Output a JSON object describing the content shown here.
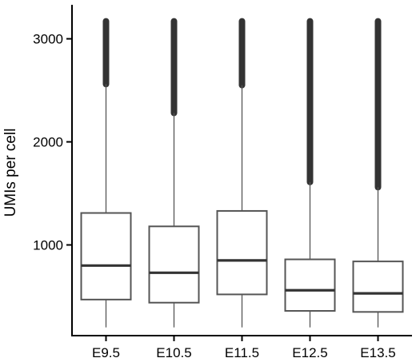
{
  "chart_data": {
    "type": "boxplot",
    "title": "",
    "xlabel": "",
    "ylabel": "UMIs per cell",
    "ylim": [
      120,
      3330
    ],
    "yticks": [
      1000,
      2000,
      3000
    ],
    "grid": false,
    "legend": "none",
    "categories": [
      "E9.5",
      "E10.5",
      "E11.5",
      "E12.5",
      "E13.5"
    ],
    "boxes": [
      {
        "category": "E9.5",
        "whisker_low": 200,
        "q1": 470,
        "median": 800,
        "q3": 1310,
        "whisker_high": 2560,
        "outliers_from": 2560,
        "outliers_to": 3170
      },
      {
        "category": "E10.5",
        "whisker_low": 200,
        "q1": 440,
        "median": 730,
        "q3": 1180,
        "whisker_high": 2280,
        "outliers_from": 2280,
        "outliers_to": 3170
      },
      {
        "category": "E11.5",
        "whisker_low": 200,
        "q1": 520,
        "median": 850,
        "q3": 1330,
        "whisker_high": 2550,
        "outliers_from": 2550,
        "outliers_to": 3170
      },
      {
        "category": "E12.5",
        "whisker_low": 200,
        "q1": 360,
        "median": 560,
        "q3": 860,
        "whisker_high": 1610,
        "outliers_from": 1610,
        "outliers_to": 3170
      },
      {
        "category": "E13.5",
        "whisker_low": 200,
        "q1": 350,
        "median": 530,
        "q3": 840,
        "whisker_high": 1560,
        "outliers_from": 1560,
        "outliers_to": 3170
      }
    ],
    "colors": {
      "box_fill": "#ffffff",
      "box_stroke": "#555555",
      "median": "#333333",
      "outliers": "#333333",
      "axis": "#000000"
    }
  }
}
